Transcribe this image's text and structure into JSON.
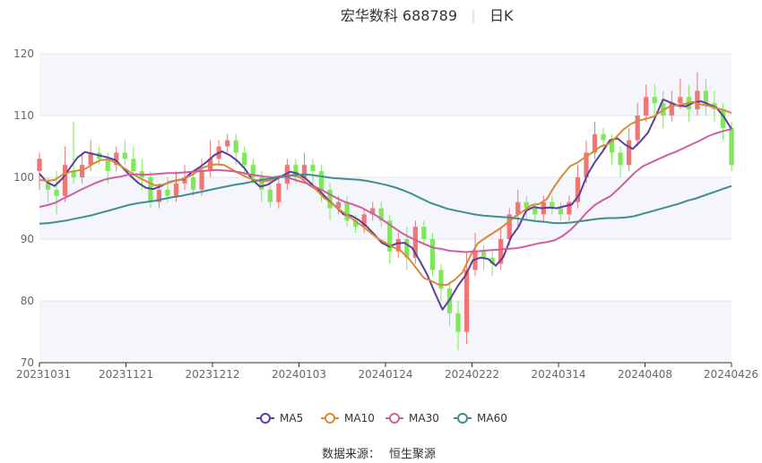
{
  "chart_data": {
    "type": "candlestick",
    "title": "宏华数科 688789",
    "subtitle": "日K",
    "xlabel": "",
    "ylabel": "",
    "ylim": [
      70,
      120
    ],
    "y_ticks": [
      70,
      80,
      90,
      100,
      110,
      120
    ],
    "x_tick_labels": [
      "20231031",
      "20231121",
      "20231212",
      "20240103",
      "20240124",
      "20240222",
      "20240314",
      "20240408",
      "20240426"
    ],
    "grid": true,
    "legend_position": "bottom",
    "up_color": "#f07676",
    "down_color": "#7fe85a",
    "series": [
      {
        "name": "MA5",
        "color": "#5b3e9e",
        "values": [
          100.6,
          99.2,
          98.6,
          99.8,
          101.5,
          103.2,
          104.1,
          103.8,
          103.5,
          103.2,
          102.8,
          101.5,
          100.2,
          99.1,
          98.3,
          98.1,
          98.6,
          99.2,
          99.5,
          99.7,
          100.8,
          101.6,
          102.5,
          103.6,
          104.2,
          103.6,
          102.7,
          101.4,
          99.6,
          98.5,
          98.8,
          99.6,
          100.3,
          100.9,
          100.6,
          99.8,
          98.7,
          97.6,
          96.3,
          95.2,
          94.0,
          93.8,
          93.1,
          92.1,
          90.8,
          89.4,
          88.8,
          89.3,
          89.4,
          88.6,
          86.5,
          84.2,
          81.3,
          78.6,
          80.3,
          82.4,
          84.1,
          86.6,
          87.0,
          86.8,
          85.7,
          87.1,
          90.3,
          92.0,
          94.6,
          95.2,
          95.0,
          95.1,
          95.0,
          95.3,
          95.6,
          97.2,
          100.3,
          102.4,
          104.1,
          106.0,
          106.3,
          105.3,
          104.6,
          105.8,
          107.2,
          109.8,
          112.6,
          112.1,
          111.6,
          111.5,
          112.1,
          112.3,
          111.8,
          111.3,
          109.8,
          107.8
        ]
      },
      {
        "name": "MA10",
        "color": "#d8893b",
        "values": [
          99.6,
          99.4,
          99.6,
          100.4,
          100.9,
          101.1,
          101.4,
          102.2,
          102.8,
          102.9,
          102.3,
          101.5,
          100.7,
          99.9,
          99.3,
          98.7,
          98.8,
          99.2,
          99.5,
          99.9,
          100.5,
          101.4,
          101.9,
          102.1,
          102.0,
          101.3,
          100.6,
          100.0,
          99.6,
          99.3,
          99.5,
          100.1,
          100.2,
          100.4,
          99.9,
          98.8,
          98.0,
          96.7,
          95.8,
          94.8,
          93.9,
          93.0,
          92.1,
          91.1,
          90.1,
          89.4,
          88.7,
          88.1,
          86.9,
          85.3,
          83.7,
          83.2,
          82.6,
          82.6,
          83.4,
          84.6,
          87.2,
          89.3,
          90.2,
          91.0,
          91.8,
          92.8,
          93.8,
          94.6,
          95.5,
          95.7,
          96.5,
          98.6,
          100.3,
          101.8,
          102.4,
          103.3,
          104.1,
          105.0,
          105.4,
          106.5,
          107.8,
          108.7,
          109.2,
          109.5,
          109.9,
          110.8,
          111.5,
          111.7,
          111.9,
          112.2,
          111.8,
          111.6,
          111.2,
          110.9,
          110.4
        ]
      },
      {
        "name": "MA30",
        "color": "#d05ea3",
        "values": [
          95.2,
          95.5,
          95.9,
          96.6,
          97.2,
          97.9,
          98.5,
          99.1,
          99.6,
          99.9,
          100.1,
          100.4,
          100.5,
          100.4,
          100.5,
          100.6,
          100.7,
          100.7,
          100.8,
          100.9,
          101.0,
          101.1,
          101.2,
          101.1,
          101.0,
          100.8,
          100.5,
          100.3,
          100.1,
          100.0,
          100.2,
          99.9,
          99.5,
          99.1,
          98.6,
          98.0,
          97.3,
          96.6,
          96.0,
          95.6,
          95.1,
          94.4,
          93.7,
          92.8,
          91.9,
          91.0,
          90.3,
          89.7,
          89.1,
          88.6,
          88.4,
          88.1,
          88.0,
          87.9,
          88.0,
          88.1,
          88.2,
          88.3,
          88.4,
          88.5,
          88.7,
          89.0,
          89.3,
          89.5,
          89.8,
          90.5,
          91.5,
          92.8,
          94.3,
          95.5,
          96.3,
          97.0,
          98.2,
          99.5,
          100.8,
          101.8,
          102.4,
          103.0,
          103.6,
          104.1,
          104.7,
          105.3,
          105.9,
          106.6,
          107.1,
          107.5,
          107.8
        ]
      },
      {
        "name": "MA60",
        "color": "#3f8f8f",
        "values": [
          92.5,
          92.6,
          92.8,
          93.0,
          93.3,
          93.6,
          93.9,
          94.3,
          94.7,
          95.1,
          95.5,
          95.8,
          96.0,
          96.2,
          96.5,
          96.8,
          97.0,
          97.3,
          97.6,
          97.9,
          98.2,
          98.5,
          98.8,
          99.0,
          99.3,
          99.6,
          99.8,
          100.0,
          100.2,
          100.4,
          100.5,
          100.3,
          100.1,
          99.9,
          99.8,
          99.7,
          99.6,
          99.4,
          99.1,
          98.8,
          98.4,
          97.9,
          97.3,
          96.6,
          95.9,
          95.4,
          94.9,
          94.6,
          94.3,
          94.0,
          93.8,
          93.7,
          93.6,
          93.5,
          93.3,
          93.1,
          92.9,
          92.8,
          92.6,
          92.6,
          92.7,
          92.9,
          93.1,
          93.3,
          93.4,
          93.4,
          93.5,
          93.7,
          94.1,
          94.5,
          94.9,
          95.3,
          95.7,
          96.2,
          96.6,
          97.1,
          97.6,
          98.1,
          98.6
        ]
      }
    ],
    "candles": [
      [
        101,
        103,
        98,
        104
      ],
      [
        99,
        98,
        96,
        100
      ],
      [
        98,
        97,
        94,
        101
      ],
      [
        97,
        102,
        96,
        105
      ],
      [
        101,
        100,
        99,
        109
      ],
      [
        100,
        102,
        99,
        104
      ],
      [
        102,
        104,
        101,
        106
      ],
      [
        104,
        103,
        102,
        105
      ],
      [
        103,
        101,
        99,
        104
      ],
      [
        102,
        104,
        101,
        105
      ],
      [
        104,
        103,
        102,
        106
      ],
      [
        103,
        101,
        100,
        105
      ],
      [
        101,
        100,
        98,
        103
      ],
      [
        100,
        96,
        95,
        101
      ],
      [
        96,
        98,
        95,
        99
      ],
      [
        98,
        97,
        96,
        100
      ],
      [
        97,
        99,
        96,
        101
      ],
      [
        99,
        100,
        98,
        102
      ],
      [
        100,
        98,
        97,
        101
      ],
      [
        98,
        101,
        97,
        103
      ],
      [
        101,
        103,
        100,
        106
      ],
      [
        103,
        105,
        102,
        106
      ],
      [
        105,
        106,
        104,
        107
      ],
      [
        106,
        104,
        102,
        107
      ],
      [
        104,
        102,
        100,
        105
      ],
      [
        102,
        100,
        99,
        103
      ],
      [
        100,
        98,
        96,
        101
      ],
      [
        98,
        96,
        95,
        99
      ],
      [
        96,
        99,
        95,
        100
      ],
      [
        99,
        102,
        98,
        103
      ],
      [
        102,
        100,
        99,
        103
      ],
      [
        100,
        102,
        99,
        104
      ],
      [
        102,
        101,
        99,
        103
      ],
      [
        101,
        98,
        96,
        102
      ],
      [
        98,
        95,
        93,
        99
      ],
      [
        95,
        96,
        94,
        97
      ],
      [
        96,
        93,
        92,
        97
      ],
      [
        93,
        92,
        91,
        94
      ],
      [
        92,
        94,
        91,
        95
      ],
      [
        94,
        95,
        93,
        96
      ],
      [
        95,
        93,
        92,
        96
      ],
      [
        93,
        88,
        86,
        94
      ],
      [
        88,
        90,
        87,
        91
      ],
      [
        90,
        87,
        85,
        92
      ],
      [
        87,
        92,
        86,
        93
      ],
      [
        92,
        90,
        89,
        93
      ],
      [
        90,
        85,
        84,
        91
      ],
      [
        85,
        82,
        80,
        86
      ],
      [
        82,
        78,
        76,
        83
      ],
      [
        78,
        75,
        72,
        80
      ],
      [
        75,
        85,
        73,
        88
      ],
      [
        85,
        88,
        84,
        91
      ],
      [
        88,
        87,
        85,
        89
      ],
      [
        87,
        86,
        84,
        88
      ],
      [
        86,
        90,
        85,
        92
      ],
      [
        90,
        94,
        89,
        95
      ],
      [
        94,
        96,
        92,
        98
      ],
      [
        96,
        95,
        93,
        97
      ],
      [
        95,
        94,
        93,
        96
      ],
      [
        94,
        96,
        93,
        97
      ],
      [
        96,
        95,
        94,
        97
      ],
      [
        95,
        94,
        93,
        96
      ],
      [
        94,
        96,
        93,
        97
      ],
      [
        96,
        100,
        95,
        102
      ],
      [
        100,
        104,
        99,
        106
      ],
      [
        104,
        107,
        103,
        109
      ],
      [
        107,
        106,
        104,
        108
      ],
      [
        106,
        104,
        102,
        107
      ],
      [
        104,
        102,
        100,
        105
      ],
      [
        102,
        106,
        101,
        108
      ],
      [
        106,
        110,
        105,
        112
      ],
      [
        110,
        113,
        109,
        115
      ],
      [
        113,
        112,
        110,
        115
      ],
      [
        112,
        110,
        108,
        114
      ],
      [
        110,
        112,
        109,
        114
      ],
      [
        112,
        113,
        111,
        116
      ],
      [
        113,
        111,
        109,
        115
      ],
      [
        111,
        114,
        110,
        117
      ],
      [
        114,
        112,
        110,
        116
      ],
      [
        112,
        111,
        109,
        114
      ],
      [
        111,
        108,
        106,
        112
      ],
      [
        108,
        102,
        101,
        109
      ]
    ]
  },
  "source": {
    "label": "数据来源：",
    "value": "恒生聚源"
  }
}
